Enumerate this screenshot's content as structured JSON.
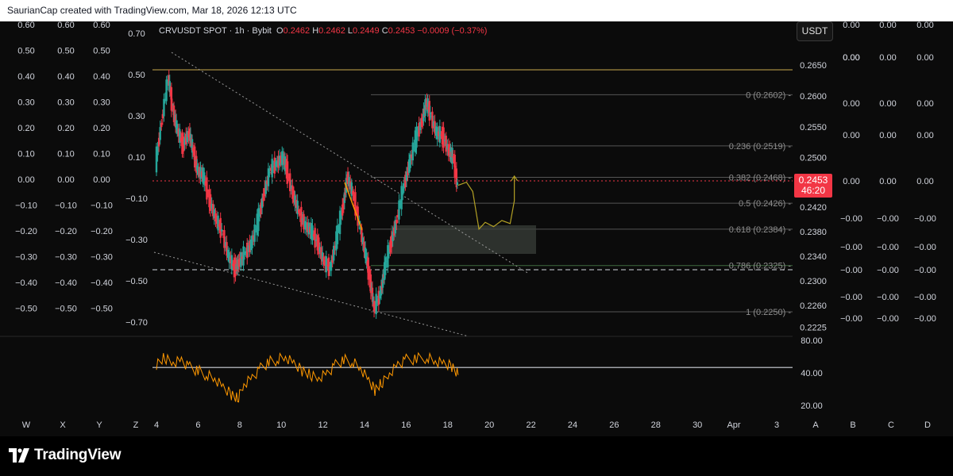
{
  "header": {
    "text": "SaurianCap created with TradingView.com, Mar 18, 2026 12:13 UTC"
  },
  "legend": {
    "symbol": "CRVUSDT SPOT · 1h · Bybit",
    "o_label": "O",
    "o": "0.2462",
    "h_label": "H",
    "h": "0.2462",
    "l_label": "L",
    "l": "0.2449",
    "c_label": "C",
    "c": "0.2453",
    "change": "−0.0009 (−0.37%)"
  },
  "currency_button": "USDT",
  "last_price": {
    "value": "0.2453",
    "countdown": "46:20"
  },
  "colors": {
    "up": "#26a69a",
    "down": "#f23645",
    "fib": "#8f8f8f",
    "rsi": "#ff9800",
    "accent_line": "#c9a84c"
  },
  "chart_data": {
    "type": "candlestick",
    "title": "CRVUSDT SPOT · 1h · Bybit",
    "price_ticks": [
      "0.2650",
      "0.2600",
      "0.2550",
      "0.2500",
      "0.2460",
      "0.2420",
      "0.2380",
      "0.2340",
      "0.2300",
      "0.2260",
      "0.2225"
    ],
    "date_ticks": [
      "4",
      "6",
      "8",
      "10",
      "12",
      "14",
      "16",
      "18",
      "20",
      "22",
      "24",
      "26",
      "28",
      "30",
      "Apr",
      "3"
    ],
    "fib_levels": [
      {
        "label": "0 (0.2602)",
        "value": 0.2602
      },
      {
        "label": "0.236 (0.2519)",
        "value": 0.2519
      },
      {
        "label": "0.382 (0.2468)",
        "value": 0.2468
      },
      {
        "label": "0.5 (0.2426)",
        "value": 0.2426
      },
      {
        "label": "0.618 (0.2384)",
        "value": 0.2384
      },
      {
        "label": "0.786 (0.2325)",
        "value": 0.2325
      },
      {
        "label": "1 (0.2250)",
        "value": 0.225
      }
    ],
    "horizontal_lines": [
      0.2635,
      0.2311
    ],
    "demand_zone": [
      0.2343,
      0.2383
    ],
    "close_path": [
      [
        4.0,
        0.249
      ],
      [
        4.3,
        0.256
      ],
      [
        4.6,
        0.263
      ],
      [
        4.8,
        0.258
      ],
      [
        5.0,
        0.255
      ],
      [
        5.3,
        0.252
      ],
      [
        5.6,
        0.254
      ],
      [
        5.8,
        0.251
      ],
      [
        6.0,
        0.248
      ],
      [
        6.3,
        0.247
      ],
      [
        6.6,
        0.243
      ],
      [
        6.9,
        0.24
      ],
      [
        7.2,
        0.238
      ],
      [
        7.5,
        0.234
      ],
      [
        7.8,
        0.232
      ],
      [
        8.0,
        0.233
      ],
      [
        8.3,
        0.2345
      ],
      [
        8.6,
        0.236
      ],
      [
        8.9,
        0.2395
      ],
      [
        9.2,
        0.244
      ],
      [
        9.5,
        0.248
      ],
      [
        9.8,
        0.249
      ],
      [
        10.1,
        0.25
      ],
      [
        10.3,
        0.248
      ],
      [
        10.6,
        0.244
      ],
      [
        10.9,
        0.241
      ],
      [
        11.2,
        0.239
      ],
      [
        11.5,
        0.238
      ],
      [
        11.8,
        0.236
      ],
      [
        12.1,
        0.233
      ],
      [
        12.4,
        0.232
      ],
      [
        12.7,
        0.237
      ],
      [
        13.0,
        0.242
      ],
      [
        13.2,
        0.247
      ],
      [
        13.5,
        0.244
      ],
      [
        13.8,
        0.239
      ],
      [
        14.1,
        0.234
      ],
      [
        14.3,
        0.23
      ],
      [
        14.5,
        0.2255
      ],
      [
        14.8,
        0.228
      ],
      [
        15.0,
        0.232
      ],
      [
        15.3,
        0.236
      ],
      [
        15.6,
        0.24
      ],
      [
        15.9,
        0.245
      ],
      [
        16.2,
        0.249
      ],
      [
        16.5,
        0.253
      ],
      [
        16.8,
        0.256
      ],
      [
        17.0,
        0.259
      ],
      [
        17.2,
        0.257
      ],
      [
        17.5,
        0.254
      ],
      [
        17.8,
        0.2535
      ],
      [
        18.1,
        0.251
      ],
      [
        18.3,
        0.25
      ],
      [
        18.5,
        0.2453
      ]
    ],
    "rsi": {
      "ticks": [
        "80.00",
        "40.00",
        "20.00"
      ],
      "midline": 55,
      "path": [
        [
          4.0,
          58
        ],
        [
          4.4,
          64
        ],
        [
          4.8,
          60
        ],
        [
          5.2,
          62
        ],
        [
          5.6,
          55
        ],
        [
          6.0,
          52
        ],
        [
          6.4,
          48
        ],
        [
          6.8,
          44
        ],
        [
          7.2,
          36
        ],
        [
          7.6,
          30
        ],
        [
          7.9,
          26
        ],
        [
          8.2,
          40
        ],
        [
          8.6,
          46
        ],
        [
          9.0,
          54
        ],
        [
          9.4,
          60
        ],
        [
          9.8,
          62
        ],
        [
          10.2,
          64
        ],
        [
          10.6,
          58
        ],
        [
          11.0,
          52
        ],
        [
          11.4,
          48
        ],
        [
          11.8,
          46
        ],
        [
          12.2,
          50
        ],
        [
          12.6,
          57
        ],
        [
          13.0,
          62
        ],
        [
          13.4,
          60
        ],
        [
          13.8,
          54
        ],
        [
          14.2,
          42
        ],
        [
          14.5,
          34
        ],
        [
          14.8,
          40
        ],
        [
          15.2,
          50
        ],
        [
          15.6,
          58
        ],
        [
          16.0,
          62
        ],
        [
          16.5,
          63
        ],
        [
          17.0,
          64
        ],
        [
          17.4,
          60
        ],
        [
          17.8,
          58
        ],
        [
          18.2,
          56
        ],
        [
          18.5,
          48
        ]
      ]
    },
    "projection_path": [
      [
        18.5,
        0.2455
      ],
      [
        18.9,
        0.246
      ],
      [
        19.2,
        0.2445
      ],
      [
        19.5,
        0.2384
      ],
      [
        19.8,
        0.2395
      ],
      [
        20.2,
        0.2388
      ],
      [
        20.6,
        0.2398
      ],
      [
        21.0,
        0.2393
      ],
      [
        21.2,
        0.243
      ],
      [
        21.2,
        0.247
      ]
    ],
    "trendlines": [
      {
        "from": [
          4.8,
          0.264
        ],
        "to": [
          20.0,
          0.2325
        ]
      },
      {
        "from": [
          3.8,
          0.236
        ],
        "to": [
          19.0,
          0.2225
        ]
      }
    ],
    "left_scale": [
      "0.70",
      "0.50",
      "0.30",
      "0.10",
      "−0.10",
      "−0.30",
      "−0.50",
      "−0.70"
    ],
    "left_grid": [
      "0.60",
      "0.50",
      "0.40",
      "0.30",
      "0.20",
      "0.10",
      "0.00",
      "−0.10",
      "−0.20",
      "−0.30",
      "−0.40",
      "−0.50"
    ],
    "right_grid_top": [
      "0.00",
      "0.00",
      "0.00",
      "0.00",
      "0.00",
      "0.00"
    ],
    "right_grid_bottom": [
      "−0.00",
      "−0.00",
      "−0.00",
      "−0.00",
      "−0.00",
      "−0.00"
    ],
    "bottom_letters": [
      "W",
      "X",
      "Y",
      "Z",
      "A",
      "B",
      "C",
      "D"
    ]
  },
  "footer": {
    "brand": "TradingView"
  }
}
